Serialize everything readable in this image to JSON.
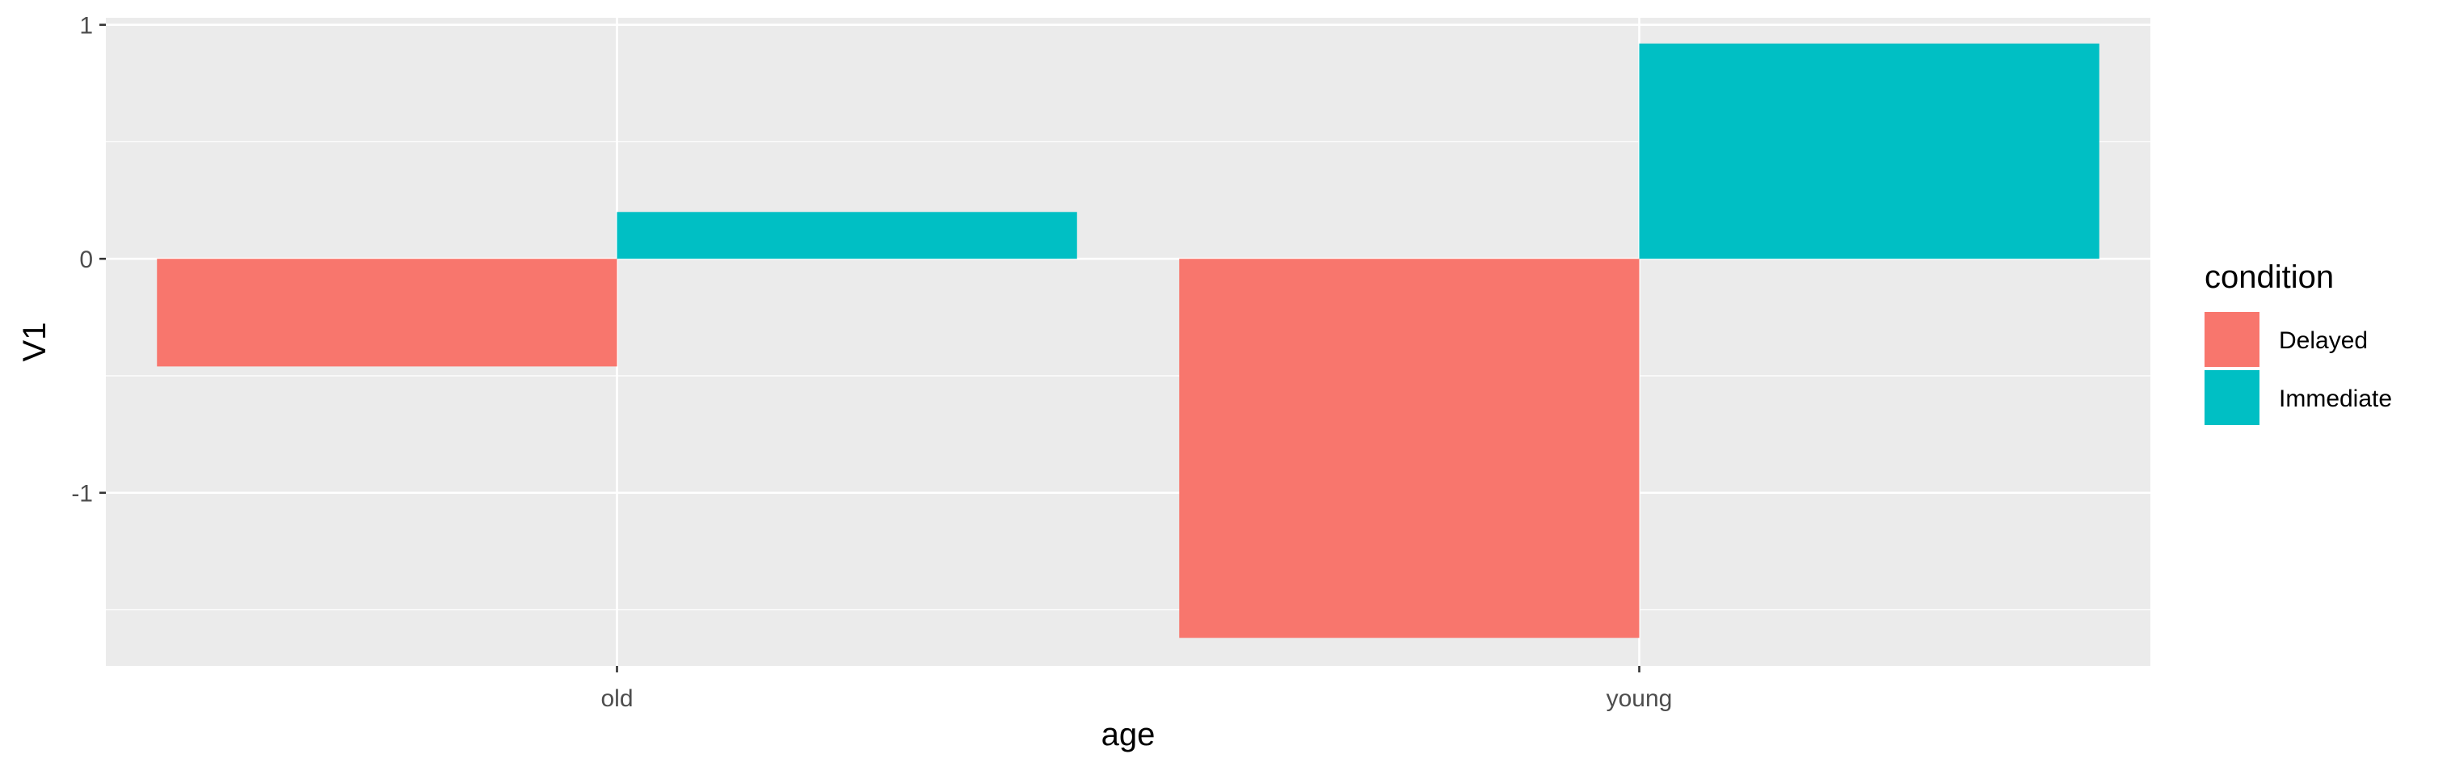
{
  "chart_data": {
    "type": "bar",
    "title": "",
    "xlabel": "age",
    "ylabel": "V1",
    "categories": [
      "old",
      "young"
    ],
    "series": [
      {
        "name": "Delayed",
        "color": "#F8766D",
        "values": [
          -0.46,
          -1.62
        ]
      },
      {
        "name": "Immediate",
        "color": "#00BFC4",
        "values": [
          0.2,
          0.92
        ]
      }
    ],
    "ylim": [
      -1.74,
      1.03
    ],
    "y_ticks": [
      1,
      0,
      -1
    ],
    "y_tick_labels": [
      "1",
      "0",
      "-1"
    ],
    "grid": true,
    "legend": {
      "title": "condition",
      "placement": "right"
    },
    "panel_background": "#EBEBEB",
    "grid_color": "#FFFFFF"
  }
}
